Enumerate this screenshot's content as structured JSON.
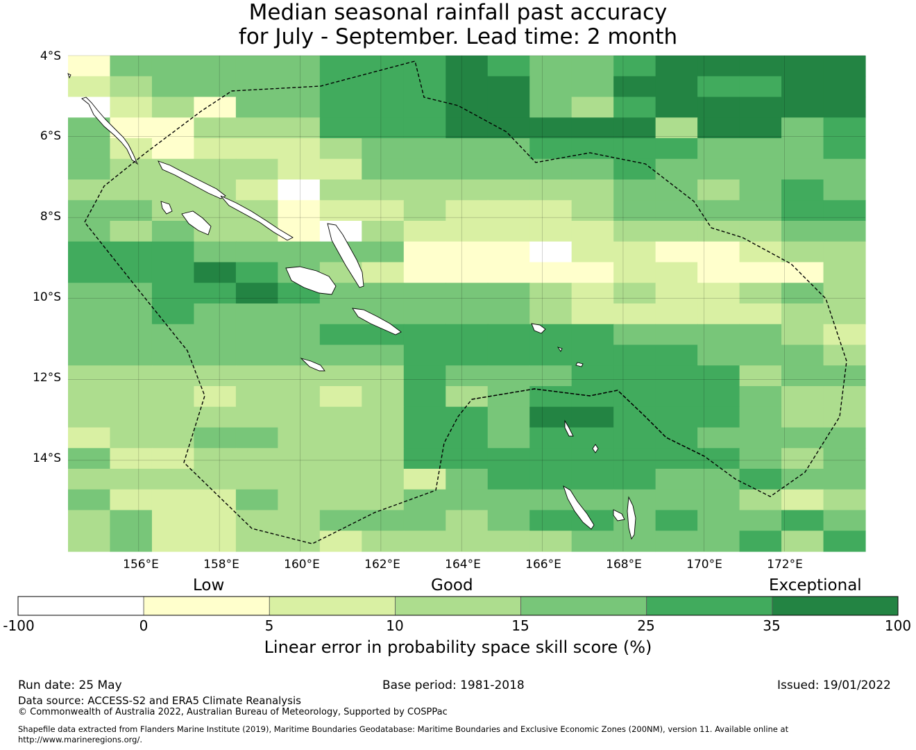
{
  "title": {
    "line1": "Median seasonal rainfall past accuracy",
    "line2": "for July - September. Lead time: 2 month"
  },
  "map": {
    "lat_labels": [
      "4°S",
      "6°S",
      "8°S",
      "10°S",
      "12°S",
      "14°S"
    ],
    "lon_labels": [
      "156°E",
      "158°E",
      "160°E",
      "162°E",
      "164°E",
      "166°E",
      "168°E",
      "170°E",
      "172°E"
    ],
    "lon_range": [
      154.25,
      174.0
    ],
    "lat_range": [
      -4.0,
      -16.25
    ],
    "grid": true,
    "cell_size_deg": 0.833,
    "skill_grid_classes": [
      "1444445556544566666",
      "2344445556644665566",
      "0231445556643566666",
      "4113335556666636645",
      "4212223444455554445",
      "4333322444444544444",
      "3333203333333443454",
      "4433312232223444455",
      "4343310322222333344",
      "5554444411102211233",
      "5556543211111221113",
      "4455654444432322343",
      "4454444444432222233",
      "4444445555555444432",
      "4444444455555554443",
      "3333333354445555344",
      "3332332353455555433",
      "3333333355466555433",
      "2334433355455554444",
      "4223333355555555434",
      "3333333324555544544",
      "4222433344444444323",
      "3422334443455454454",
      "3422332333334444535"
    ],
    "boundary_style": "dashed",
    "coastline_color": "#000000"
  },
  "colorbar": {
    "words": [
      "Low",
      "Good",
      "Exceptional"
    ],
    "ticks": [
      "-100",
      "0",
      "5",
      "10",
      "15",
      "25",
      "35",
      "100"
    ],
    "colors": [
      "#ffffff",
      "#ffffcc",
      "#d9f0a3",
      "#addd8e",
      "#78c679",
      "#41ab5d",
      "#238443"
    ],
    "label": "Linear error in probability space skill score (%)"
  },
  "footer": {
    "run_date": "Run date: 25 May",
    "base_period": "Base period: 1981-2018",
    "issued": "Issued: 19/01/2022",
    "data_source": "Data source: ACCESS-S2 and ERA5 Climate Reanalysis",
    "copyright": "© Commonwealth of Australia 2022, Australian Bureau of Meteorology, Supported by COSPPac",
    "shapefile_line1": "Shapefile data extracted from Flanders Marine Institute (2019), Maritime Boundaries Geodatabase: Maritime Boundaries and Exclusive Economic Zones (200NM), version 11. Available online at",
    "shapefile_line2": "http://www.marineregions.org/."
  }
}
